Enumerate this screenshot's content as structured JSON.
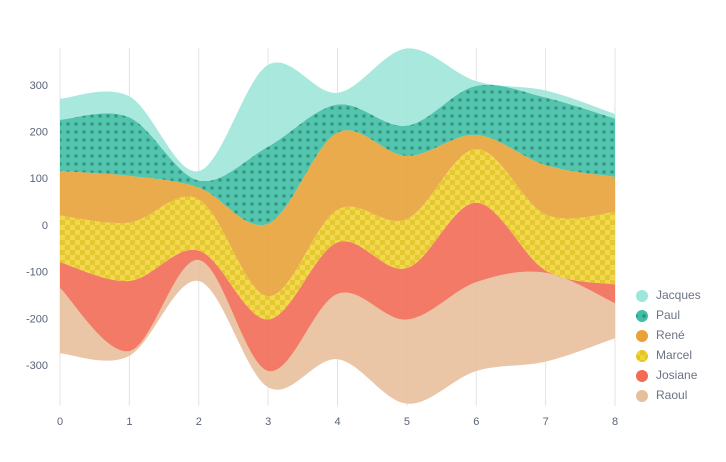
{
  "chart_data": {
    "type": "streamgraph",
    "offset": "silhouette",
    "curve": "smooth",
    "x": [
      0,
      1,
      2,
      3,
      4,
      5,
      6,
      7,
      8
    ],
    "xlim": [
      0,
      8
    ],
    "xticks": [
      0,
      1,
      2,
      3,
      4,
      5,
      6,
      7,
      8
    ],
    "ylim": [
      -385,
      381
    ],
    "yticks": [
      -300,
      -200,
      -100,
      0,
      100,
      200,
      300
    ],
    "grid": "x",
    "legend": "right-bottom",
    "series": [
      {
        "name": "Raoul",
        "color": "#e8bf9c",
        "values": [
          140,
          10,
          45,
          35,
          140,
          180,
          190,
          190,
          75
        ]
      },
      {
        "name": "Josiane",
        "color": "#f26b55",
        "pattern": "none",
        "values": [
          55,
          150,
          20,
          110,
          110,
          110,
          170,
          5,
          40
        ]
      },
      {
        "name": "Marcel",
        "color": "#f2d43a",
        "pattern": "checker",
        "values": [
          100,
          125,
          110,
          50,
          70,
          105,
          115,
          120,
          155
        ]
      },
      {
        "name": "René",
        "color": "#e8a238",
        "values": [
          95,
          100,
          25,
          155,
          165,
          135,
          30,
          105,
          75
        ]
      },
      {
        "name": "Paul",
        "color": "#3fbfa5",
        "pattern": "dots",
        "values": [
          110,
          125,
          15,
          165,
          60,
          65,
          105,
          145,
          125
        ]
      },
      {
        "name": "Jacques",
        "color": "#9ee6d9",
        "values": [
          45,
          45,
          20,
          175,
          25,
          165,
          10,
          15,
          10
        ]
      }
    ]
  }
}
